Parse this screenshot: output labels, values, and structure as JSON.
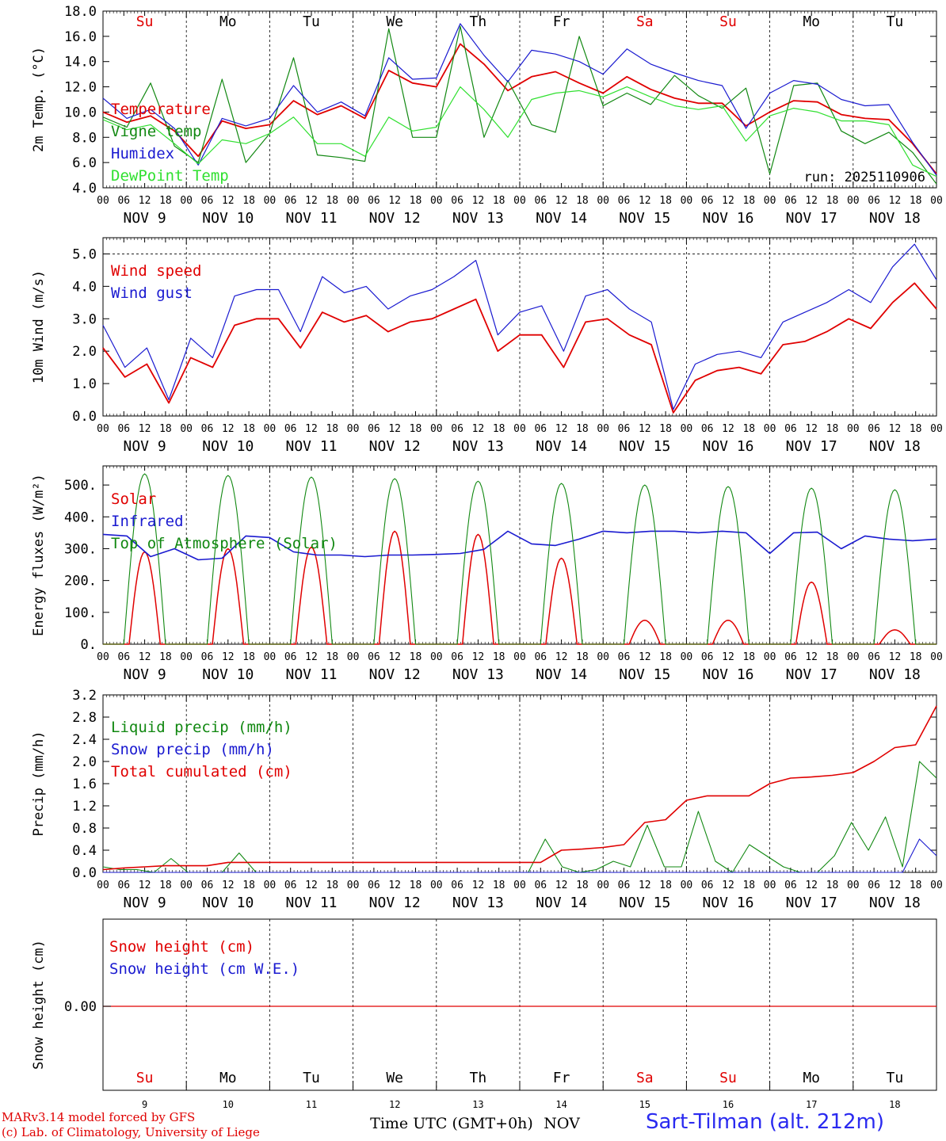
{
  "chart_data": [
    {
      "type": "line",
      "ylabel": "2m Temp. (°C)",
      "ylim": [
        4,
        18
      ],
      "yticks": [
        "4.0",
        "6.0",
        "8.0",
        "10.0",
        "12.0",
        "14.0",
        "16.0",
        "18.0"
      ],
      "annotation": "run: 2025110906",
      "x_hours": [
        0,
        6,
        12,
        18,
        24,
        30,
        36,
        42,
        48,
        54,
        60,
        66,
        72,
        78,
        84,
        90,
        96,
        102,
        108,
        114,
        120,
        126,
        132,
        138,
        144,
        150,
        156,
        162,
        168,
        174,
        180,
        186,
        192,
        198,
        204,
        210,
        216,
        222,
        228,
        234,
        240
      ],
      "series": [
        {
          "name": "Temperature",
          "color": "#e00000",
          "values": [
            10.0,
            9.2,
            9.7,
            8.5,
            6.5,
            9.3,
            8.7,
            9.0,
            10.9,
            9.8,
            10.5,
            9.5,
            13.3,
            12.3,
            12.0,
            15.4,
            13.8,
            11.7,
            12.8,
            13.2,
            12.3,
            11.5,
            12.8,
            11.8,
            11.1,
            10.7,
            10.7,
            8.9,
            10.0,
            10.9,
            10.8,
            9.8,
            9.5,
            9.4,
            7.5,
            5.1
          ]
        },
        {
          "name": "Vigne temp",
          "color": "#118811",
          "values": [
            9.6,
            8.8,
            12.3,
            7.3,
            6.0,
            12.6,
            6.0,
            8.3,
            14.3,
            6.6,
            6.4,
            6.1,
            16.6,
            8.0,
            8.0,
            16.8,
            8.0,
            12.5,
            9.0,
            8.4,
            16.0,
            10.5,
            11.5,
            10.6,
            12.9,
            11.3,
            10.3,
            11.9,
            5.1,
            12.1,
            12.3,
            8.5,
            7.5,
            8.4,
            6.8,
            4.3
          ]
        },
        {
          "name": "Humidex",
          "color": "#1a1ad0",
          "values": [
            11.1,
            9.5,
            10.2,
            8.7,
            5.8,
            9.5,
            8.9,
            9.5,
            12.1,
            10.0,
            10.8,
            9.7,
            14.3,
            12.6,
            12.7,
            17.0,
            14.5,
            12.4,
            14.9,
            14.6,
            14.0,
            13.0,
            15.0,
            13.8,
            13.1,
            12.5,
            12.1,
            8.7,
            11.5,
            12.5,
            12.2,
            11.0,
            10.5,
            10.6,
            7.6,
            5.0
          ]
        },
        {
          "name": "DewPoint Temp",
          "color": "#30e030",
          "values": [
            9.4,
            8.6,
            9.0,
            7.5,
            5.9,
            7.8,
            7.5,
            8.3,
            9.6,
            7.5,
            7.5,
            6.5,
            9.6,
            8.5,
            8.8,
            12.0,
            10.2,
            8.0,
            11.0,
            11.5,
            11.7,
            11.2,
            12.0,
            11.2,
            10.5,
            10.2,
            10.5,
            7.7,
            9.7,
            10.3,
            10.0,
            9.3,
            9.3,
            9.0,
            5.8,
            4.9
          ]
        }
      ]
    },
    {
      "type": "line",
      "ylabel": "10m Wind (m/s)",
      "ylim": [
        0,
        5.5
      ],
      "yticks": [
        "0.0",
        "1.0",
        "2.0",
        "3.0",
        "4.0",
        "5.0"
      ],
      "series": [
        {
          "name": "Wind speed",
          "color": "#e00000",
          "values": [
            2.1,
            1.2,
            1.6,
            0.4,
            1.8,
            1.5,
            2.8,
            3.0,
            3.0,
            2.1,
            3.2,
            2.9,
            3.1,
            2.6,
            2.9,
            3.0,
            3.3,
            3.6,
            2.0,
            2.5,
            2.5,
            1.5,
            2.9,
            3.0,
            2.5,
            2.2,
            0.1,
            1.1,
            1.4,
            1.5,
            1.3,
            2.2,
            2.3,
            2.6,
            3.0,
            2.7,
            3.5,
            4.1,
            3.3
          ]
        },
        {
          "name": "Wind gust",
          "color": "#1a1ad0",
          "values": [
            2.8,
            1.5,
            2.1,
            0.5,
            2.4,
            1.8,
            3.7,
            3.9,
            3.9,
            2.6,
            4.3,
            3.8,
            4.0,
            3.3,
            3.7,
            3.9,
            4.3,
            4.8,
            2.5,
            3.2,
            3.4,
            2.0,
            3.7,
            3.9,
            3.3,
            2.9,
            0.2,
            1.6,
            1.9,
            2.0,
            1.8,
            2.9,
            3.2,
            3.5,
            3.9,
            3.5,
            4.6,
            5.3,
            4.2
          ]
        }
      ]
    },
    {
      "type": "line",
      "ylabel": "Energy fluxes (W/m²)",
      "ylim": [
        0,
        560
      ],
      "yticks": [
        "0.",
        "100.",
        "200.",
        "300.",
        "400.",
        "500."
      ],
      "series": [
        {
          "name": "Solar",
          "color": "#e00000",
          "peaks": [
            {
              "day": 0,
              "value": 290
            },
            {
              "day": 1,
              "value": 300
            },
            {
              "day": 2,
              "value": 305
            },
            {
              "day": 3,
              "value": 355
            },
            {
              "day": 4,
              "value": 345
            },
            {
              "day": 5,
              "value": 270
            },
            {
              "day": 6,
              "value": 75
            },
            {
              "day": 7,
              "value": 75
            },
            {
              "day": 8,
              "value": 195
            },
            {
              "day": 9,
              "value": 45
            }
          ]
        },
        {
          "name": "Infrared",
          "color": "#1a1ad0",
          "values": [
            345,
            340,
            275,
            300,
            265,
            270,
            340,
            335,
            290,
            280,
            280,
            275,
            280,
            280,
            282,
            285,
            298,
            355,
            315,
            310,
            330,
            355,
            350,
            355,
            355,
            350,
            355,
            350,
            285,
            350,
            352,
            300,
            340,
            330,
            325,
            330
          ]
        },
        {
          "name": "Top of Atmosphere (Solar)",
          "color": "#118811",
          "peaks": [
            {
              "day": 0,
              "value": 535
            },
            {
              "day": 1,
              "value": 530
            },
            {
              "day": 2,
              "value": 525
            },
            {
              "day": 3,
              "value": 520
            },
            {
              "day": 4,
              "value": 512
            },
            {
              "day": 5,
              "value": 505
            },
            {
              "day": 6,
              "value": 500
            },
            {
              "day": 7,
              "value": 495
            },
            {
              "day": 8,
              "value": 490
            },
            {
              "day": 9,
              "value": 485
            }
          ]
        }
      ]
    },
    {
      "type": "line",
      "ylabel": "Precip (mm/h)",
      "ylim": [
        0,
        3.2
      ],
      "yticks": [
        "0.0",
        "0.4",
        "0.8",
        "1.2",
        "1.6",
        "2.0",
        "2.4",
        "2.8",
        "3.2"
      ],
      "series": [
        {
          "name": "Liquid precip (mm/h)",
          "color": "#118811",
          "values": [
            0.1,
            0.05,
            0.05,
            0.0,
            0.25,
            0.0,
            0.0,
            0.0,
            0.35,
            0.0,
            0.0,
            0.0,
            0.0,
            0.0,
            0.0,
            0.0,
            0.0,
            0.0,
            0.0,
            0.0,
            0.0,
            0.0,
            0.0,
            0.0,
            0.0,
            0.0,
            0.6,
            0.1,
            0.0,
            0.05,
            0.2,
            0.1,
            0.85,
            0.1,
            0.1,
            1.1,
            0.2,
            0.0,
            0.5,
            0.3,
            0.1,
            0.0,
            0.0,
            0.3,
            0.9,
            0.4,
            1.0,
            0.1,
            2.0,
            1.7
          ]
        },
        {
          "name": "Snow precip (mm/h)",
          "color": "#1a1ad0",
          "values": [
            0.0,
            0.0,
            0.0,
            0.0,
            0.0,
            0.0,
            0.0,
            0.0,
            0.0,
            0.0,
            0.0,
            0.0,
            0.0,
            0.0,
            0.0,
            0.0,
            0.0,
            0.0,
            0.0,
            0.0,
            0.0,
            0.0,
            0.0,
            0.0,
            0.0,
            0.0,
            0.0,
            0.0,
            0.0,
            0.0,
            0.0,
            0.0,
            0.0,
            0.0,
            0.0,
            0.0,
            0.0,
            0.0,
            0.0,
            0.0,
            0.0,
            0.0,
            0.0,
            0.0,
            0.0,
            0.0,
            0.0,
            0.0,
            0.6,
            0.3
          ]
        },
        {
          "name": "Total cumulated (cm)",
          "color": "#e00000",
          "values": [
            0.05,
            0.08,
            0.1,
            0.12,
            0.12,
            0.12,
            0.18,
            0.18,
            0.18,
            0.18,
            0.18,
            0.18,
            0.18,
            0.18,
            0.18,
            0.18,
            0.18,
            0.18,
            0.18,
            0.18,
            0.18,
            0.18,
            0.4,
            0.42,
            0.45,
            0.5,
            0.9,
            0.95,
            1.3,
            1.38,
            1.38,
            1.38,
            1.6,
            1.7,
            1.72,
            1.75,
            1.8,
            2.0,
            2.25,
            2.3,
            3.0
          ]
        }
      ]
    },
    {
      "type": "line",
      "ylabel": "Snow height (cm)",
      "yticks": [
        "0.00"
      ],
      "series": [
        {
          "name": "Snow height (cm)",
          "color": "#e00000",
          "values": [
            0,
            0
          ]
        },
        {
          "name": "Snow height (cm W.E.)",
          "color": "#1a1ad0",
          "values": [
            0,
            0
          ]
        }
      ],
      "xlabel": "Time UTC (GMT+0h)",
      "month": "NOV"
    }
  ],
  "days": [
    {
      "abbr": "Su",
      "date": "NOV  9",
      "num": "9",
      "weekend": true
    },
    {
      "abbr": "Mo",
      "date": "NOV 10",
      "num": "10",
      "weekend": false
    },
    {
      "abbr": "Tu",
      "date": "NOV 11",
      "num": "11",
      "weekend": false
    },
    {
      "abbr": "We",
      "date": "NOV 12",
      "num": "12",
      "weekend": false
    },
    {
      "abbr": "Th",
      "date": "NOV 13",
      "num": "13",
      "weekend": false
    },
    {
      "abbr": "Fr",
      "date": "NOV 14",
      "num": "14",
      "weekend": false
    },
    {
      "abbr": "Sa",
      "date": "NOV 15",
      "num": "15",
      "weekend": true
    },
    {
      "abbr": "Su",
      "date": "NOV 16",
      "num": "16",
      "weekend": true
    },
    {
      "abbr": "Mo",
      "date": "NOV 17",
      "num": "17",
      "weekend": false
    },
    {
      "abbr": "Tu",
      "date": "NOV 18",
      "num": "18",
      "weekend": false
    }
  ],
  "hour_labels": [
    "00",
    "06",
    "12",
    "18"
  ],
  "last_hour_label": "00",
  "footer": {
    "credit1": "MARv3.14 model forced by GFS",
    "credit2": "(c) Lab. of Climatology, University of Liege",
    "station": "Sart-Tilman (alt. 212m)"
  },
  "colors": {
    "red": "#e00000",
    "green": "#118811",
    "blue": "#1a1ad0",
    "light_green": "#30e030",
    "weekend": "#e00000",
    "station": "#2a2af0"
  }
}
